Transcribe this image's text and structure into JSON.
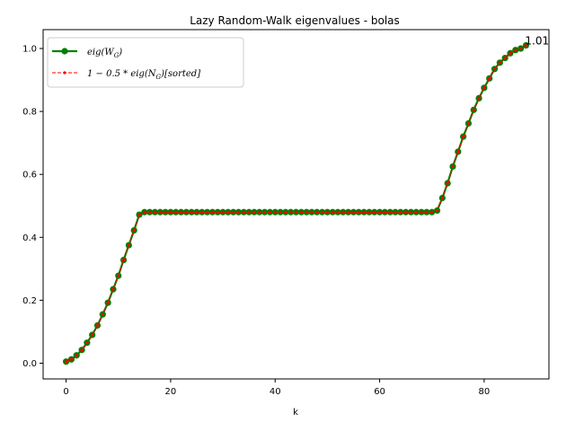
{
  "chart_data": {
    "type": "line",
    "title": "Lazy Random-Walk eigenvalues - bolas",
    "xlabel": "k",
    "ylabel": "",
    "xlim": [
      -4.4,
      92.4
    ],
    "ylim": [
      -0.05,
      1.06
    ],
    "xticks": [
      0,
      20,
      40,
      60,
      80
    ],
    "yticks": [
      0.0,
      0.2,
      0.4,
      0.6,
      0.8,
      1.0
    ],
    "xtick_labels": [
      "0",
      "20",
      "40",
      "60",
      "80"
    ],
    "ytick_labels": [
      "0.0",
      "0.2",
      "0.4",
      "0.6",
      "0.8",
      "1.0"
    ],
    "grid": false,
    "legend_position": "upper-left",
    "x": [
      0,
      1,
      2,
      3,
      4,
      5,
      6,
      7,
      8,
      9,
      10,
      11,
      12,
      13,
      14,
      15,
      16,
      17,
      18,
      19,
      20,
      21,
      22,
      23,
      24,
      25,
      26,
      27,
      28,
      29,
      30,
      31,
      32,
      33,
      34,
      35,
      36,
      37,
      38,
      39,
      40,
      41,
      42,
      43,
      44,
      45,
      46,
      47,
      48,
      49,
      50,
      51,
      52,
      53,
      54,
      55,
      56,
      57,
      58,
      59,
      60,
      61,
      62,
      63,
      64,
      65,
      66,
      67,
      68,
      69,
      70,
      71,
      72,
      73,
      74,
      75,
      76,
      77,
      78,
      79,
      80,
      81,
      82,
      83,
      84,
      85,
      86,
      87,
      88
    ],
    "series": [
      {
        "name": "eig(W_G)",
        "legend_main": "eig(W",
        "legend_sub": "G",
        "legend_tail": ")",
        "color": "#008000",
        "marker": "circle",
        "values": [
          0.005,
          0.012,
          0.025,
          0.042,
          0.065,
          0.09,
          0.12,
          0.155,
          0.192,
          0.235,
          0.278,
          0.328,
          0.375,
          0.422,
          0.472,
          0.48,
          0.48,
          0.48,
          0.48,
          0.48,
          0.48,
          0.48,
          0.48,
          0.48,
          0.48,
          0.48,
          0.48,
          0.48,
          0.48,
          0.48,
          0.48,
          0.48,
          0.48,
          0.48,
          0.48,
          0.48,
          0.48,
          0.48,
          0.48,
          0.48,
          0.48,
          0.48,
          0.48,
          0.48,
          0.48,
          0.48,
          0.48,
          0.48,
          0.48,
          0.48,
          0.48,
          0.48,
          0.48,
          0.48,
          0.48,
          0.48,
          0.48,
          0.48,
          0.48,
          0.48,
          0.48,
          0.48,
          0.48,
          0.48,
          0.48,
          0.48,
          0.48,
          0.48,
          0.48,
          0.48,
          0.48,
          0.485,
          0.525,
          0.572,
          0.625,
          0.672,
          0.72,
          0.762,
          0.805,
          0.842,
          0.875,
          0.905,
          0.935,
          0.955,
          0.97,
          0.985,
          0.995,
          1.0,
          1.01
        ]
      },
      {
        "name": "1 - 0.5 * eig(N_G)[sorted]",
        "legend_main": "1 − 0.5 * eig(N",
        "legend_sub": "G",
        "legend_tail": ")[sorted]",
        "color": "#ff0000",
        "marker": "small-dot",
        "dashed": true,
        "values": [
          0.005,
          0.012,
          0.025,
          0.042,
          0.065,
          0.09,
          0.12,
          0.155,
          0.192,
          0.235,
          0.278,
          0.328,
          0.375,
          0.422,
          0.472,
          0.48,
          0.48,
          0.48,
          0.48,
          0.48,
          0.48,
          0.48,
          0.48,
          0.48,
          0.48,
          0.48,
          0.48,
          0.48,
          0.48,
          0.48,
          0.48,
          0.48,
          0.48,
          0.48,
          0.48,
          0.48,
          0.48,
          0.48,
          0.48,
          0.48,
          0.48,
          0.48,
          0.48,
          0.48,
          0.48,
          0.48,
          0.48,
          0.48,
          0.48,
          0.48,
          0.48,
          0.48,
          0.48,
          0.48,
          0.48,
          0.48,
          0.48,
          0.48,
          0.48,
          0.48,
          0.48,
          0.48,
          0.48,
          0.48,
          0.48,
          0.48,
          0.48,
          0.48,
          0.48,
          0.48,
          0.48,
          0.485,
          0.525,
          0.572,
          0.625,
          0.672,
          0.72,
          0.762,
          0.805,
          0.842,
          0.875,
          0.905,
          0.935,
          0.955,
          0.97,
          0.985,
          0.995,
          1.0,
          1.01
        ]
      }
    ],
    "annotations": [
      {
        "text": "1.01",
        "x": 88,
        "y": 1.01
      }
    ]
  }
}
